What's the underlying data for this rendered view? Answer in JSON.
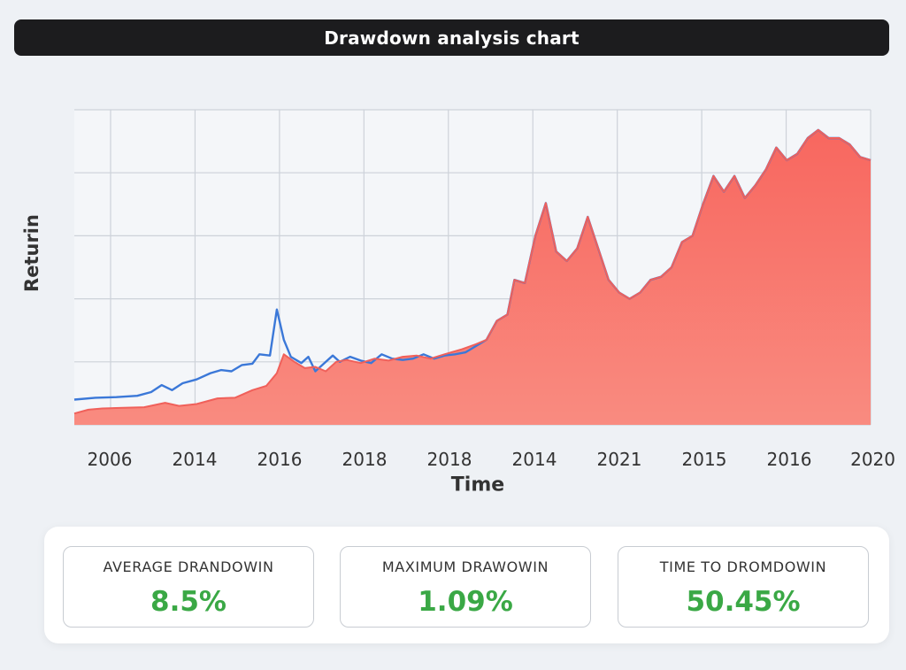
{
  "title": "Drawdown analysis chart",
  "chart_data": {
    "type": "area",
    "title": "Drawdown analysis chart",
    "xlabel": "Time",
    "ylabel": "Returin",
    "x_tick_labels": [
      "2006",
      "2014",
      "2016",
      "2018",
      "2018",
      "2014",
      "2021",
      "2015",
      "2016",
      "2020"
    ],
    "ylim": [
      0,
      5
    ],
    "grid": true,
    "y_tick_labels": [],
    "series": [
      {
        "color": "#3b78d8",
        "points": [
          [
            0,
            0.4
          ],
          [
            0.3,
            0.43
          ],
          [
            0.6,
            0.44
          ],
          [
            0.9,
            0.46
          ],
          [
            1.1,
            0.52
          ],
          [
            1.25,
            0.63
          ],
          [
            1.4,
            0.55
          ],
          [
            1.55,
            0.66
          ],
          [
            1.75,
            0.72
          ],
          [
            1.95,
            0.82
          ],
          [
            2.1,
            0.87
          ],
          [
            2.25,
            0.85
          ],
          [
            2.4,
            0.95
          ],
          [
            2.55,
            0.97
          ],
          [
            2.65,
            1.12
          ],
          [
            2.8,
            1.1
          ],
          [
            2.9,
            1.83
          ],
          [
            3.0,
            1.35
          ],
          [
            3.1,
            1.08
          ],
          [
            3.25,
            0.98
          ],
          [
            3.35,
            1.08
          ],
          [
            3.45,
            0.85
          ],
          [
            3.55,
            0.95
          ],
          [
            3.7,
            1.1
          ],
          [
            3.8,
            1.0
          ],
          [
            3.95,
            1.08
          ],
          [
            4.1,
            1.02
          ],
          [
            4.25,
            0.98
          ],
          [
            4.4,
            1.12
          ],
          [
            4.55,
            1.05
          ],
          [
            4.7,
            1.03
          ],
          [
            4.85,
            1.05
          ],
          [
            5.0,
            1.12
          ],
          [
            5.15,
            1.05
          ],
          [
            5.3,
            1.1
          ],
          [
            5.45,
            1.12
          ],
          [
            5.6,
            1.15
          ],
          [
            5.75,
            1.25
          ],
          [
            5.9,
            1.35
          ],
          [
            6.05,
            1.65
          ],
          [
            6.2,
            1.75
          ],
          [
            6.3,
            2.3
          ],
          [
            6.45,
            2.25
          ],
          [
            6.6,
            3.0
          ],
          [
            6.75,
            3.52
          ],
          [
            6.9,
            2.75
          ],
          [
            7.05,
            2.6
          ],
          [
            7.2,
            2.8
          ],
          [
            7.35,
            3.3
          ],
          [
            7.5,
            2.8
          ],
          [
            7.65,
            2.3
          ],
          [
            7.8,
            2.1
          ],
          [
            7.95,
            2.0
          ],
          [
            8.1,
            2.1
          ],
          [
            8.25,
            2.3
          ],
          [
            8.4,
            2.35
          ],
          [
            8.55,
            2.5
          ],
          [
            8.7,
            2.9
          ],
          [
            8.85,
            3.0
          ],
          [
            9.0,
            3.5
          ],
          [
            9.15,
            3.95
          ],
          [
            9.3,
            3.7
          ],
          [
            9.45,
            3.95
          ],
          [
            9.6,
            3.6
          ],
          [
            9.75,
            3.8
          ],
          [
            9.9,
            4.05
          ],
          [
            10.05,
            4.4
          ],
          [
            10.2,
            4.2
          ],
          [
            10.35,
            4.3
          ],
          [
            10.5,
            4.55
          ],
          [
            10.65,
            4.68
          ],
          [
            10.8,
            4.55
          ],
          [
            10.95,
            4.55
          ],
          [
            11.1,
            4.45
          ],
          [
            11.25,
            4.25
          ],
          [
            11.4,
            4.2
          ]
        ]
      },
      {
        "color": "#f0605a",
        "points": [
          [
            0,
            0.18
          ],
          [
            0.2,
            0.24
          ],
          [
            0.4,
            0.26
          ],
          [
            0.7,
            0.27
          ],
          [
            1.0,
            0.28
          ],
          [
            1.3,
            0.35
          ],
          [
            1.5,
            0.3
          ],
          [
            1.75,
            0.33
          ],
          [
            2.05,
            0.42
          ],
          [
            2.3,
            0.43
          ],
          [
            2.55,
            0.55
          ],
          [
            2.75,
            0.62
          ],
          [
            2.9,
            0.82
          ],
          [
            3.0,
            1.12
          ],
          [
            3.15,
            1.0
          ],
          [
            3.3,
            0.9
          ],
          [
            3.45,
            0.92
          ],
          [
            3.6,
            0.85
          ],
          [
            3.75,
            1.0
          ],
          [
            3.9,
            1.03
          ],
          [
            4.1,
            0.98
          ],
          [
            4.3,
            1.05
          ],
          [
            4.5,
            1.02
          ],
          [
            4.7,
            1.08
          ],
          [
            4.9,
            1.1
          ],
          [
            5.1,
            1.05
          ],
          [
            5.3,
            1.12
          ],
          [
            5.55,
            1.2
          ],
          [
            5.75,
            1.28
          ],
          [
            5.9,
            1.35
          ],
          [
            6.05,
            1.65
          ],
          [
            6.2,
            1.75
          ],
          [
            6.3,
            2.3
          ],
          [
            6.45,
            2.25
          ],
          [
            6.6,
            3.0
          ],
          [
            6.75,
            3.52
          ],
          [
            6.9,
            2.75
          ],
          [
            7.05,
            2.6
          ],
          [
            7.2,
            2.8
          ],
          [
            7.35,
            3.3
          ],
          [
            7.5,
            2.8
          ],
          [
            7.65,
            2.3
          ],
          [
            7.8,
            2.1
          ],
          [
            7.95,
            2.0
          ],
          [
            8.1,
            2.1
          ],
          [
            8.25,
            2.3
          ],
          [
            8.4,
            2.35
          ],
          [
            8.55,
            2.5
          ],
          [
            8.7,
            2.9
          ],
          [
            8.85,
            3.0
          ],
          [
            9.0,
            3.5
          ],
          [
            9.15,
            3.95
          ],
          [
            9.3,
            3.7
          ],
          [
            9.45,
            3.95
          ],
          [
            9.6,
            3.6
          ],
          [
            9.75,
            3.8
          ],
          [
            9.9,
            4.05
          ],
          [
            10.05,
            4.4
          ],
          [
            10.2,
            4.2
          ],
          [
            10.35,
            4.3
          ],
          [
            10.5,
            4.55
          ],
          [
            10.65,
            4.68
          ],
          [
            10.8,
            4.55
          ],
          [
            10.95,
            4.55
          ],
          [
            11.1,
            4.45
          ],
          [
            11.25,
            4.25
          ],
          [
            11.4,
            4.2
          ]
        ]
      }
    ]
  },
  "stats": [
    {
      "label": "AVERAGE DRANDOWIN",
      "value": "8.5%"
    },
    {
      "label": "MAXIMUM DRAWOWIN",
      "value": "1.09%"
    },
    {
      "label": "TIME TO DROMDOWIN",
      "value": "50.45%"
    }
  ],
  "colors": {
    "title_bg": "#1c1c1e",
    "area_fill": "#f8786f",
    "area_line": "#f0605a",
    "benchmark_line": "#3b78d8",
    "stat_value": "#3aa845"
  }
}
